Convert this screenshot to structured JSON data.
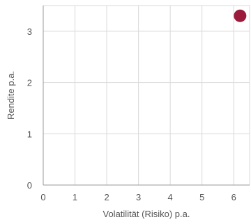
{
  "chart_data": {
    "type": "scatter",
    "xlabel": "Volatilität (Risiko) p.a.",
    "ylabel": "Rendite p.a.",
    "xlim": [
      0,
      6.5
    ],
    "ylim": [
      0,
      3.5
    ],
    "x_ticks": [
      0,
      1,
      2,
      3,
      4,
      5,
      6
    ],
    "y_ticks": [
      0,
      1,
      2,
      3
    ],
    "grid": true,
    "legend": "none",
    "series": [
      {
        "color": "#9b1b3a",
        "points": [
          {
            "x": 6.2,
            "y": 3.3
          }
        ]
      }
    ]
  }
}
